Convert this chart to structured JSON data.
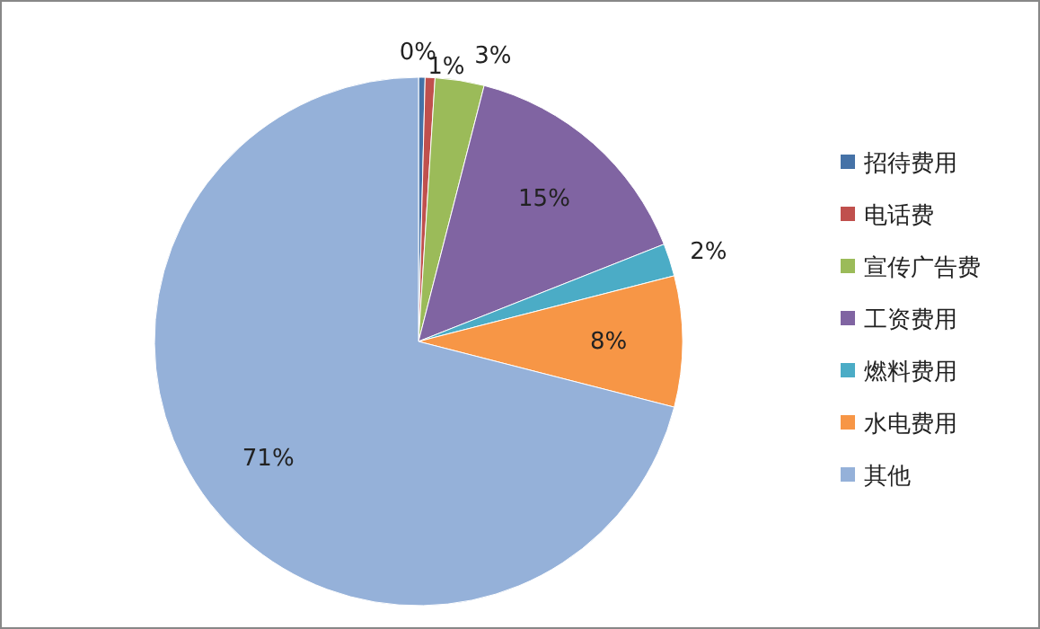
{
  "chart_data": {
    "type": "pie",
    "categories": [
      "招待费用",
      "电话费",
      "宣传广告费",
      "工资费用",
      "燃料费用",
      "水电费用",
      "其他"
    ],
    "values": [
      0.4,
      0.6,
      3,
      15,
      2,
      8,
      71
    ],
    "value_labels": [
      "0%",
      "1%",
      "3%",
      "15%",
      "2%",
      "8%",
      "71%"
    ],
    "colors": [
      "#4572a7",
      "#c0504d",
      "#9bbb59",
      "#8064a2",
      "#4bacc6",
      "#f79646",
      "#95b1d9"
    ],
    "legend": "right"
  }
}
